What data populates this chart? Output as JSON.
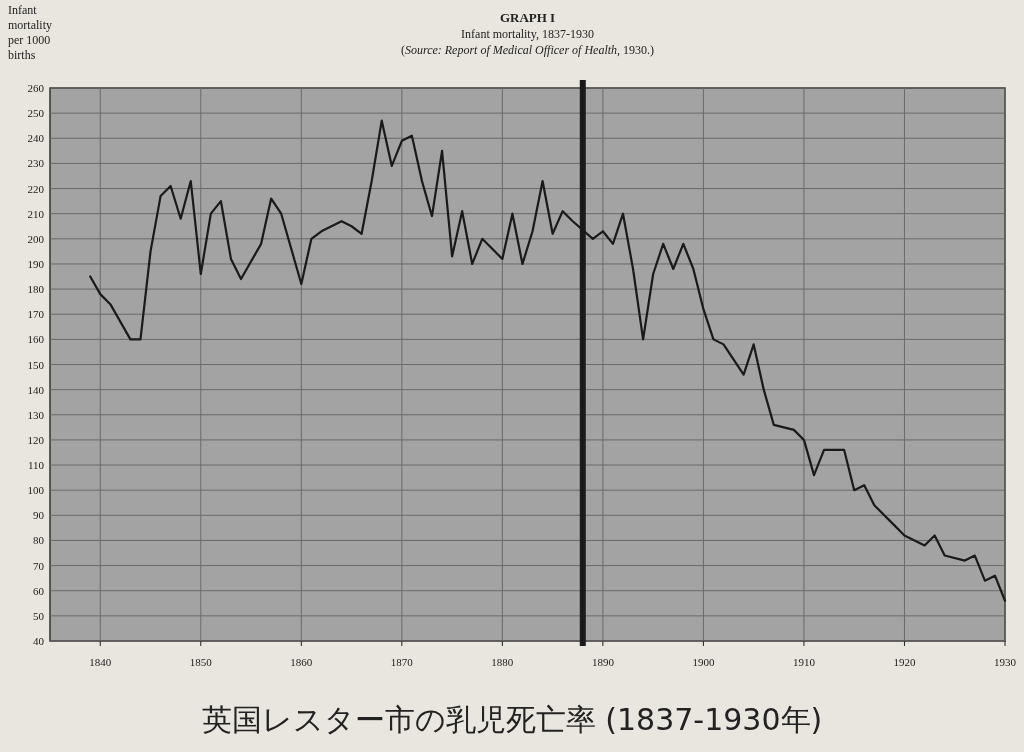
{
  "chart_data": {
    "type": "line",
    "title": "GRAPH I",
    "subtitle": "Infant mortality, 1837-1930",
    "ylabel": "Infant mortality per 1000 births",
    "annotations": [
      "(*Source: Report of Medical Officer of Health*, 1930.)",
      "英国レスター市の乳児死亡率 (1837-1930年)"
    ],
    "x": [
      1839,
      1840,
      1841,
      1843,
      1844,
      1845,
      1846,
      1847,
      1848,
      1849,
      1850,
      1851,
      1852,
      1853,
      1854,
      1856,
      1857,
      1858,
      1860,
      1861,
      1862,
      1864,
      1865,
      1866,
      1867,
      1868,
      1869,
      1870,
      1871,
      1872,
      1873,
      1874,
      1875,
      1876,
      1877,
      1878,
      1880,
      1881,
      1882,
      1883,
      1884,
      1885,
      1886,
      1887,
      1889,
      1890,
      1891,
      1892,
      1893,
      1894,
      1895,
      1896,
      1897,
      1898,
      1899,
      1900,
      1901,
      1902,
      1904,
      1905,
      1906,
      1907,
      1909,
      1910,
      1911,
      1912,
      1914,
      1915,
      1916,
      1917,
      1919,
      1920,
      1922,
      1923,
      1924,
      1926,
      1927,
      1928,
      1929,
      1930
    ],
    "series": [
      {
        "color": "#1a1a1a",
        "values": [
          185,
          178,
          174,
          160,
          160,
          195,
          217,
          221,
          208,
          223,
          186,
          210,
          215,
          192,
          184,
          198,
          216,
          210,
          182,
          200,
          203,
          207,
          205,
          202,
          223,
          247,
          229,
          239,
          241,
          223,
          209,
          235,
          193,
          211,
          190,
          200,
          192,
          210,
          190,
          203,
          223,
          202,
          211,
          207,
          200,
          203,
          198,
          210,
          188,
          160,
          186,
          198,
          188,
          198,
          188,
          172,
          160,
          158,
          146,
          158,
          140,
          126,
          124,
          120,
          106,
          116,
          116,
          100,
          102,
          94,
          86,
          82,
          78,
          82,
          74,
          72,
          74,
          64,
          66,
          56
        ]
      }
    ],
    "xlim": [
      1835,
      1930
    ],
    "ylim": [
      40,
      260
    ],
    "xticks": [
      1840,
      1850,
      1860,
      1870,
      1880,
      1890,
      1900,
      1910,
      1920,
      1930
    ],
    "yticks": [
      40,
      50,
      60,
      70,
      80,
      90,
      100,
      110,
      120,
      130,
      140,
      150,
      160,
      170,
      180,
      190,
      200,
      210,
      220,
      230,
      240,
      250,
      260
    ],
    "grid": true,
    "marker": "none",
    "line_style": "solid",
    "ref_lines": [
      {
        "axis": "x",
        "value": 1888,
        "color": "#1a1a1a"
      }
    ]
  }
}
